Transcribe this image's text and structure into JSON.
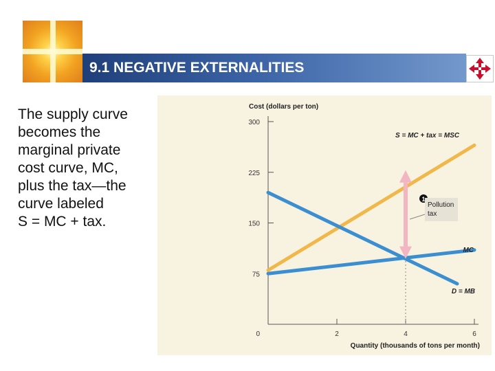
{
  "header": {
    "title": "9.1 NEGATIVE EXTERNALITIES"
  },
  "logo": {
    "icon": "golden-light-cross-logo"
  },
  "nav": {
    "icon": "four-way-arrows-icon",
    "color": "#c8102e"
  },
  "body": {
    "lines": [
      "The supply curve",
      "becomes the",
      "marginal private",
      "cost curve, MC,",
      "plus the tax—the",
      "curve labeled",
      "S = MC + tax."
    ]
  },
  "chart_data": {
    "type": "line",
    "ylabel": "Cost (dollars per ton)",
    "xlabel": "Quantity (thousands of tons per month)",
    "x_ticks": [
      0,
      2,
      4,
      6
    ],
    "y_ticks": [
      75,
      150,
      225,
      300
    ],
    "origin_label": "0",
    "xlim": [
      0,
      6
    ],
    "ylim": [
      0,
      300
    ],
    "series": [
      {
        "name": "S = MC + tax = MSC",
        "color": "#f0b84a",
        "points": [
          [
            0,
            80
          ],
          [
            6,
            265
          ]
        ]
      },
      {
        "name": "D = MB",
        "color": "#3b8ed0",
        "points": [
          [
            0,
            195
          ],
          [
            5.5,
            60
          ]
        ]
      },
      {
        "name": "MC",
        "color": "#3b8ed0",
        "points": [
          [
            0,
            75
          ],
          [
            6,
            110
          ]
        ]
      }
    ],
    "annotation": {
      "marker": "1",
      "label_lines": [
        "Pollution",
        "tax"
      ],
      "arrow_x": 4,
      "arrow_from": 100,
      "arrow_to": 225,
      "arrow_color": "#f2b6c2"
    }
  }
}
